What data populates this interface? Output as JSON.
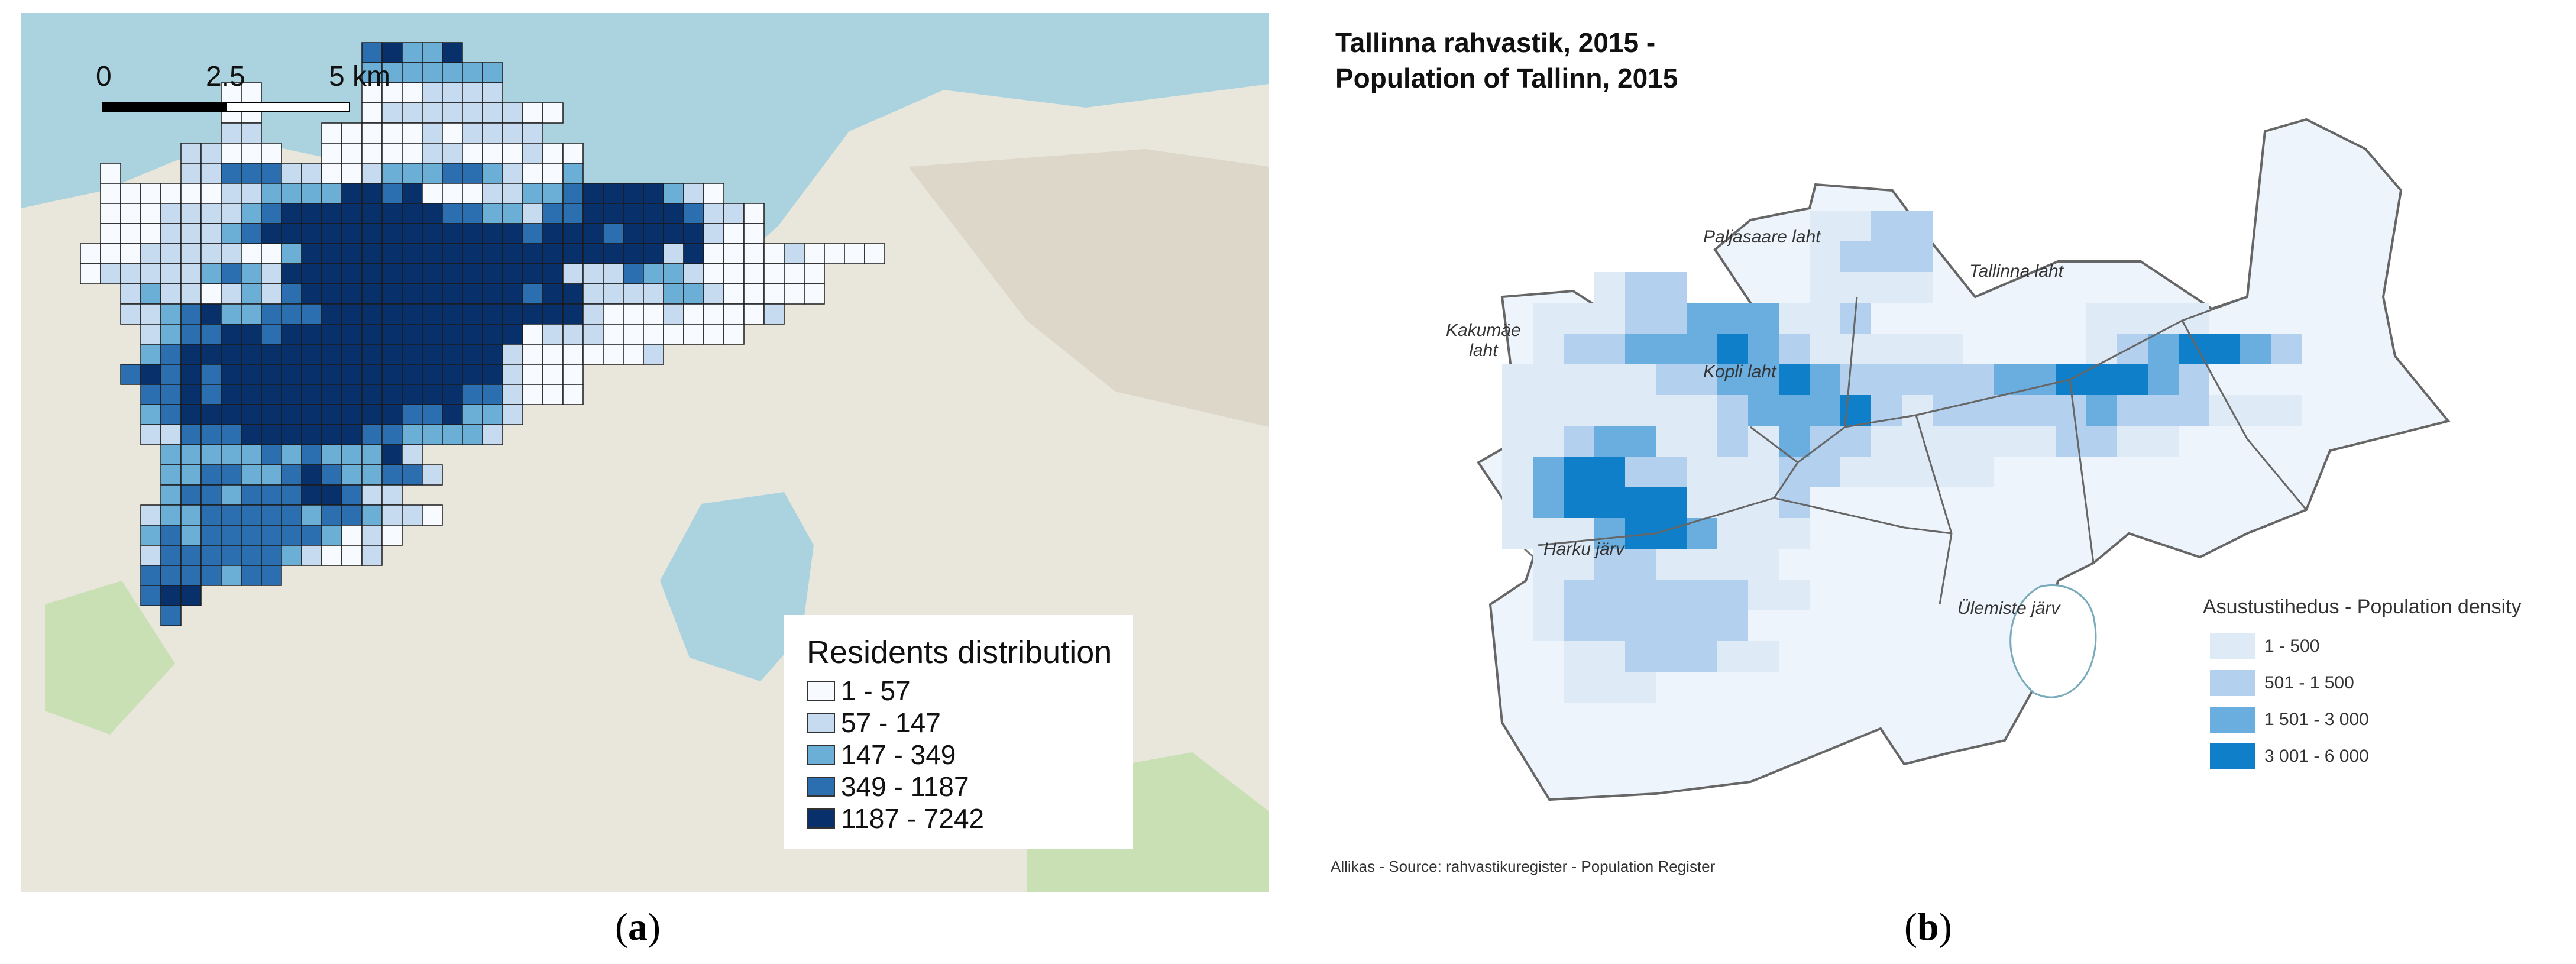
{
  "panel_a": {
    "caption": "a",
    "scale_labels": [
      "0",
      "2.5",
      "5 km"
    ],
    "legend": {
      "title": "Residents distribution",
      "classes": [
        {
          "label": "1 - 57",
          "color": "#f7fbff"
        },
        {
          "label": "57 - 147",
          "color": "#c6dbef"
        },
        {
          "label": "147 - 349",
          "color": "#6baed6"
        },
        {
          "label": "349 - 1187",
          "color": "#2b6fb0"
        },
        {
          "label": "1187 - 7242",
          "color": "#08306b"
        }
      ]
    },
    "colors": {
      "sea": "#aad3df",
      "land": "#e9e6dc",
      "park": "#c8e0b4",
      "grid_line": "#1a1a1a"
    }
  },
  "panel_b": {
    "caption": "b",
    "title_line1": "Tallinna rahvastik, 2015 -",
    "title_line2": "Population of Tallinn, 2015",
    "water_labels": {
      "paljasaare": "Paljasaare laht",
      "tallinna": "Tallinna laht",
      "kakumae": "Kakumäe\nlaht",
      "kopli": "Kopli laht",
      "harku": "Harku järv",
      "ulemiste": "Ülemiste järv"
    },
    "legend": {
      "title": "Asustustihedus - Population density",
      "classes": [
        {
          "label": "1 - 500",
          "color": "#deebf7"
        },
        {
          "label": "501 - 1 500",
          "color": "#b3d1ef"
        },
        {
          "label": "1 501 - 3 000",
          "color": "#6aaee0"
        },
        {
          "label": "3 001 - 6 000",
          "color": "#0e7fc8"
        }
      ]
    },
    "source": "Allikas - Source: rahvastikuregister - Population Register"
  }
}
